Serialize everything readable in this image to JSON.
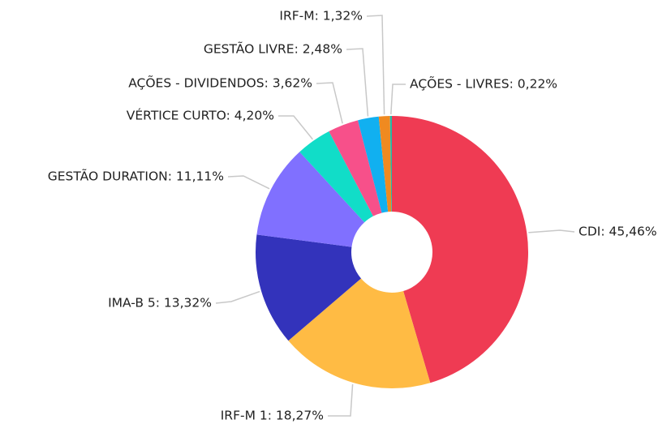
{
  "chart_data": {
    "type": "donut",
    "values": [
      45.46,
      18.27,
      13.32,
      11.11,
      4.2,
      3.62,
      2.48,
      1.32,
      0.22
    ],
    "value_labels": [
      "CDI: 45,46%",
      "IRF-M 1: 18,27%",
      "IMA-B 5: 13,32%",
      "GESTÃO DURATION: 11,11%",
      "VÉRTICE CURTO: 4,20%",
      "AÇÕES - DIVIDENDOS: 3,62%",
      "GESTÃO LIVRE: 2,48%",
      "IRF-M: 1,32%",
      "AÇÕES - LIVRES: 0,22%"
    ],
    "colors": [
      "#ef3b53",
      "#ffbb44",
      "#3333bb",
      "#8070ff",
      "#11ddc8",
      "#f7508a",
      "#11b0f0",
      "#f08a20",
      "#22bbaa"
    ]
  }
}
